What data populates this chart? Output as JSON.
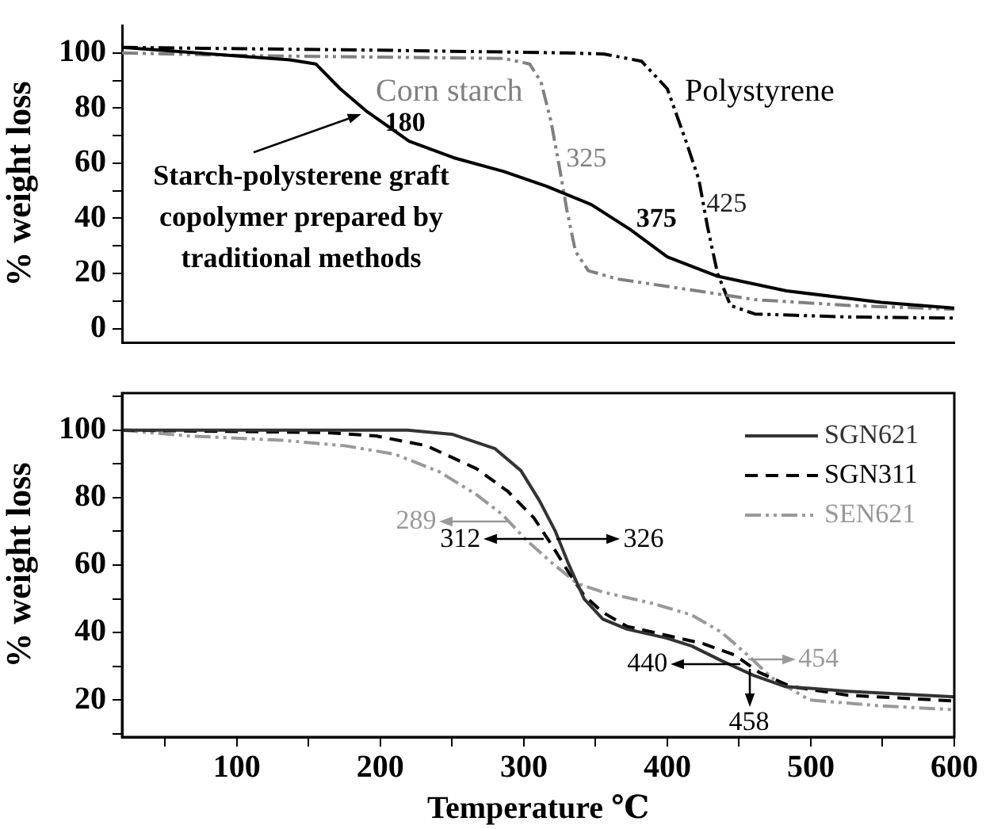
{
  "chart_data": [
    {
      "type": "line",
      "ylabel": "% weight loss",
      "xlim": [
        20,
        600
      ],
      "ylim": [
        -5,
        110
      ],
      "yticks": [
        0,
        {
          "value": 10,
          "label": null
        },
        20,
        {
          "value": 30,
          "label": null
        },
        40,
        {
          "value": 50,
          "label": null
        },
        60,
        {
          "value": 70,
          "label": null
        },
        80,
        {
          "value": 90,
          "label": null
        },
        100
      ],
      "tick_labels": "y",
      "legend": false,
      "marker": "none",
      "grid": false,
      "series": [
        {
          "color": "#000000",
          "line_style": "solid",
          "x": [
            20,
            137,
            155,
            172,
            190,
            220,
            251,
            286,
            316,
            347,
            374,
            400,
            435,
            483,
            549,
            600
          ],
          "values": [
            102,
            97.5,
            96,
            87,
            79,
            68,
            62,
            57,
            51.6,
            45,
            36,
            26,
            19,
            13.7,
            9.5,
            7.4
          ]
        },
        {
          "name": "Corn starch",
          "color": "#808080",
          "line_style": "dashdot",
          "x": [
            20,
            111,
            286,
            304,
            312,
            319,
            325,
            330,
            336,
            345,
            365,
            417,
            461,
            527,
            600
          ],
          "values": [
            100,
            99,
            98,
            96,
            89.5,
            75,
            58,
            43,
            28,
            21,
            18,
            14,
            10.5,
            8.4,
            7
          ]
        },
        {
          "name": "Polystyrene",
          "color": "#000000",
          "line_style": "dashdot",
          "x": [
            20,
            198,
            330,
            356,
            382,
            400,
            413,
            422,
            428,
            435,
            444,
            461,
            527,
            600
          ],
          "values": [
            102,
            101,
            100,
            99.6,
            97,
            87,
            68,
            54,
            37,
            20,
            8.4,
            5.3,
            4.2,
            3.8
          ]
        }
      ],
      "annotations": [
        {
          "text": "Starch-polysterene graft copolymer prepared by traditional methods",
          "x": 190,
          "y": 79
        },
        {
          "text": "180",
          "x": 190,
          "y": 79
        },
        {
          "text": "325",
          "x": 325,
          "y": 58
        },
        {
          "text": "375",
          "x": 374,
          "y": 36
        },
        {
          "text": "425",
          "x": 425,
          "y": 45
        }
      ]
    },
    {
      "type": "line",
      "xlabel": "Temperature ℃",
      "ylabel": "% weight loss",
      "xlim": [
        20,
        600
      ],
      "ylim": [
        9,
        111
      ],
      "xticks": [
        {
          "value": 50,
          "label": null
        },
        100,
        {
          "value": 150,
          "label": null
        },
        200,
        {
          "value": 250,
          "label": null
        },
        300,
        {
          "value": 350,
          "label": null
        },
        400,
        {
          "value": 450,
          "label": null
        },
        500,
        {
          "value": 550,
          "label": null
        },
        600
      ],
      "yticks": [
        {
          "value": 10,
          "label": null
        },
        20,
        {
          "value": 30,
          "label": null
        },
        40,
        {
          "value": 50,
          "label": null
        },
        60,
        {
          "value": 70,
          "label": null
        },
        80,
        {
          "value": 90,
          "label": null
        },
        100,
        {
          "value": 110,
          "label": null
        }
      ],
      "legend": "top right",
      "marker": "none",
      "grid": false,
      "series": [
        {
          "name": "SGN621",
          "color": "#333333",
          "line_style": "solid",
          "x": [
            20,
            219,
            250,
            280,
            298,
            311,
            322,
            331,
            342,
            355,
            372,
            399,
            417,
            438,
            460,
            482,
            526,
            600
          ],
          "values": [
            100,
            100,
            98.8,
            94.5,
            88,
            79,
            70,
            60.5,
            50,
            44,
            41,
            38.4,
            36,
            31.6,
            27.3,
            24,
            22.6,
            20.9
          ]
        },
        {
          "name": "SGN311",
          "color": "#000000",
          "line_style": "dashed",
          "x": [
            20,
            162,
            197,
            232,
            267,
            289,
            307,
            320,
            331,
            342,
            355,
            372,
            399,
            425,
            447,
            464,
            486,
            526,
            600
          ],
          "values": [
            100,
            99.3,
            98.3,
            95.4,
            88.6,
            81.8,
            74,
            65.6,
            58,
            51,
            46,
            41.8,
            39.2,
            36.7,
            33.3,
            28.2,
            24,
            21.4,
            19.7
          ]
        },
        {
          "name": "SEN621",
          "color": "#999999",
          "line_style": "dashdot",
          "x": [
            20,
            66,
            132,
            175,
            210,
            241,
            267,
            285,
            302,
            320,
            337,
            355,
            390,
            417,
            438,
            456,
            473,
            499,
            547,
            600
          ],
          "values": [
            100,
            98.3,
            97,
            95.4,
            92.9,
            87.7,
            80.9,
            75,
            67.3,
            60.5,
            54.6,
            52,
            48.6,
            45.2,
            40,
            33.3,
            26.5,
            20,
            18.3,
            17.1
          ]
        }
      ],
      "annotations": [
        {
          "text": "289",
          "x": 291,
          "y": 73
        },
        {
          "text": "312",
          "x": 314,
          "y": 67.6
        },
        {
          "text": "326",
          "x": 323,
          "y": 67.6
        },
        {
          "text": "440",
          "x": 451,
          "y": 30.5
        },
        {
          "text": "454",
          "x": 456,
          "y": 32
        },
        {
          "text": "458",
          "x": 457,
          "y": 29
        }
      ]
    }
  ]
}
